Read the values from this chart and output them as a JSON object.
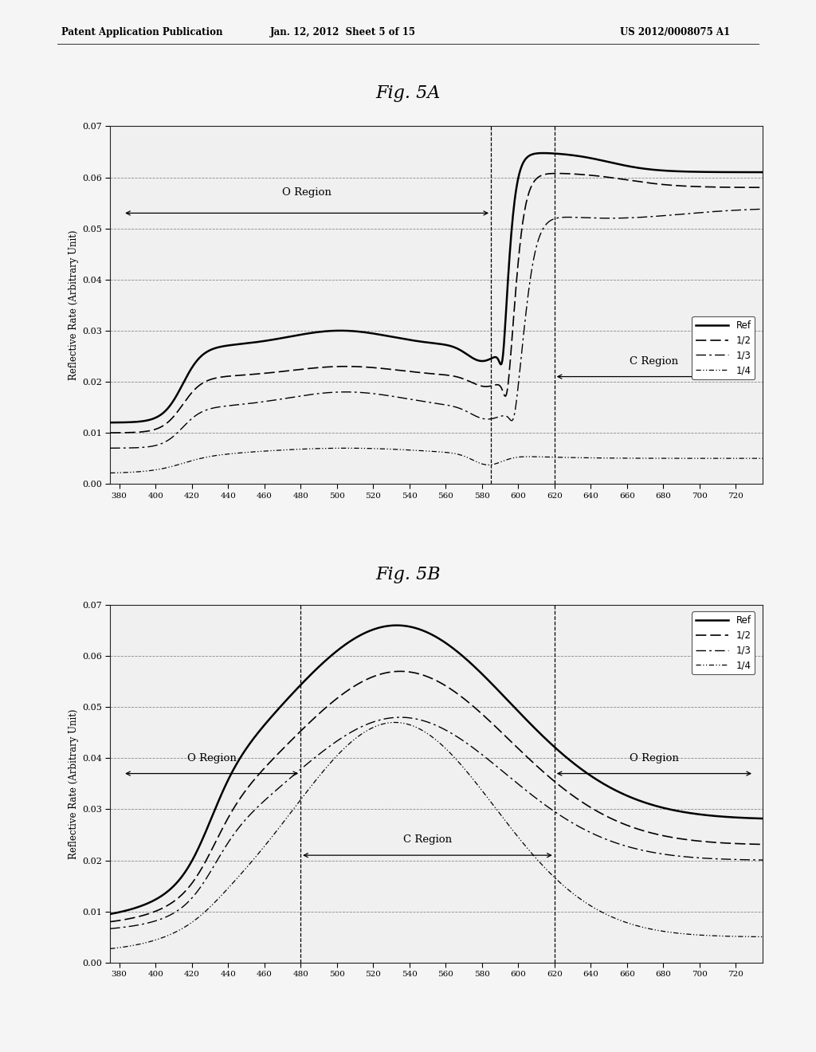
{
  "header_left": "Patent Application Publication",
  "header_mid": "Jan. 12, 2012  Sheet 5 of 15",
  "header_right": "US 2012/0008075 A1",
  "fig_a_title": "Fig. 5A",
  "fig_b_title": "Fig. 5B",
  "ylabel": "Reflective Rate (Arbitrary Unit)",
  "xlim": [
    375,
    735
  ],
  "ylim": [
    0.0,
    0.07
  ],
  "xticks": [
    380,
    400,
    420,
    440,
    460,
    480,
    500,
    520,
    540,
    560,
    580,
    600,
    620,
    640,
    660,
    680,
    700,
    720
  ],
  "yticks": [
    0.0,
    0.01,
    0.02,
    0.03,
    0.04,
    0.05,
    0.06,
    0.07
  ],
  "legend_labels": [
    "Ref",
    "1/2",
    "1/3",
    "1/4"
  ],
  "fig5a_vline1": 585,
  "fig5a_vline2": 620,
  "fig5b_vline1": 480,
  "fig5b_vline2": 620,
  "background": "#f0f0f0",
  "plot_bg": "#f0f0f0",
  "line_color": "#000000",
  "grid_color": "#888888"
}
